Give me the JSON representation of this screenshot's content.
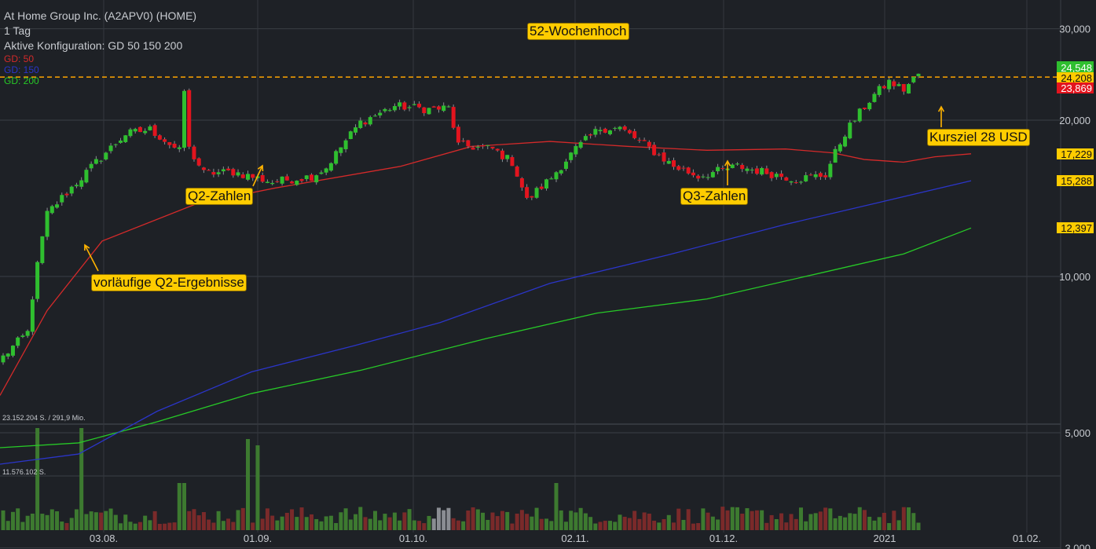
{
  "header": {
    "title": "At Home Group Inc. (A2APV0) (HOME)",
    "interval": "1 Tag",
    "config": "Aktive Konfiguration: GD 50 150 200",
    "ma": [
      {
        "label": "GD: 50",
        "color": "#d42a2a"
      },
      {
        "label": "GD: 150",
        "color": "#2b35c8"
      },
      {
        "label": "GD: 200",
        "color": "#27c927"
      }
    ]
  },
  "annotations": {
    "high52": "52-Wochenhoch",
    "q2prelim": "vorläufige Q2-Ergebnisse",
    "q2": "Q2-Zahlen",
    "q3": "Q3-Zahlen",
    "target": "Kursziel 28 USD"
  },
  "volume": {
    "max_label": "23.152.204 S. / 291,9 Mio.",
    "mid_label": "11.576.102 S."
  },
  "chart_data": {
    "type": "candlestick",
    "y_scale": "log",
    "ylim": [
      3000,
      32000
    ],
    "y_ticks": [
      {
        "value": 30000,
        "label": "30,000"
      },
      {
        "value": 20000,
        "label": "20,000"
      },
      {
        "value": 10000,
        "label": "10,000"
      },
      {
        "value": 5000,
        "label": "5,000"
      },
      {
        "value": 3000,
        "label": "3,000"
      }
    ],
    "x_ticks": [
      "03.08.",
      "01.09.",
      "01.10.",
      "02.11.",
      "01.12.",
      "2021",
      "01.02."
    ],
    "price_labels": [
      {
        "value": 24548,
        "label": "24,548",
        "bg": "#2fbf2f",
        "fg": "#ffffff"
      },
      {
        "value": 24208,
        "label": "24,208",
        "bg": "#ffcc00",
        "fg": "#111111"
      },
      {
        "value": 23869,
        "label": "23,869",
        "bg": "#e3141e",
        "fg": "#ffffff"
      },
      {
        "value": 17229,
        "label": "17,229",
        "bg": "#ffcc00",
        "fg": "#111111"
      },
      {
        "value": 15288,
        "label": "15,288",
        "bg": "#ffcc00",
        "fg": "#111111"
      },
      {
        "value": 12397,
        "label": "12,397",
        "bg": "#ffcc00",
        "fg": "#111111"
      }
    ],
    "high_line": 24208,
    "ma50_end": 17229,
    "ma150_end": 15288,
    "ma200_end": 12397,
    "colors": {
      "up": "#2fbf2f",
      "down": "#e3141e",
      "ma50": "#d42a2a",
      "ma150": "#2b35c8",
      "ma200": "#27c927",
      "high": "#ffa500"
    }
  }
}
